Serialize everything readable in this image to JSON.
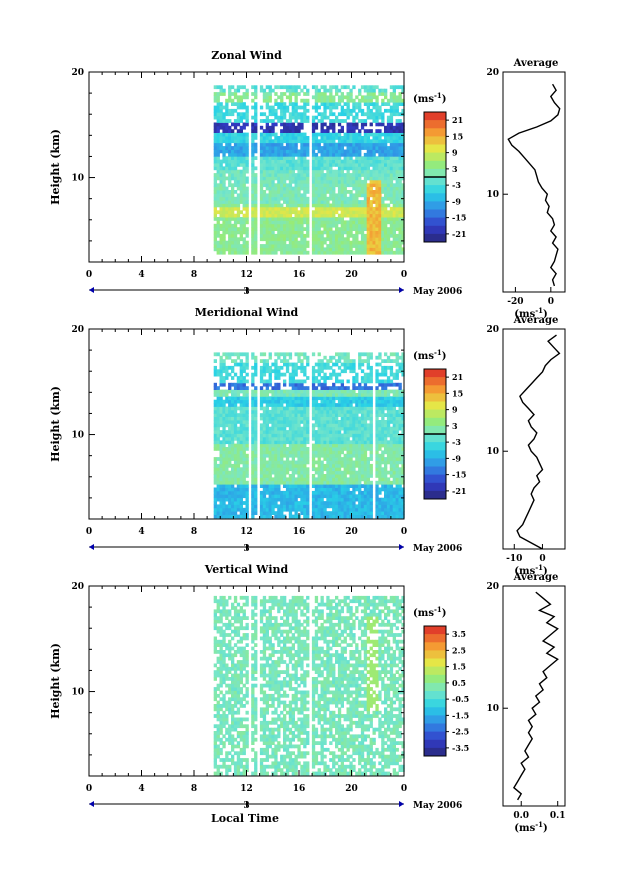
{
  "figure": {
    "xlabel": "Local Time",
    "date_label": "May 2006",
    "time_ticks": [
      "0",
      "4",
      "8",
      "12",
      "16",
      "20",
      "0"
    ],
    "date_tick": "3",
    "height_ticks": [
      "20",
      "10"
    ],
    "ylabel": "Height (km)",
    "unit_label": "(ms",
    "unit_sup": "-1",
    "average_title": "Average"
  },
  "chart_data": [
    {
      "type": "heatmap",
      "title": "Zonal Wind",
      "ylabel": "Height (km)",
      "xlabel": "Local Time",
      "x_range_hours": [
        0,
        24
      ],
      "ylim": [
        2,
        20
      ],
      "data_start_hour": 9.5,
      "colorbar": {
        "unit": "(ms-1)",
        "ticks": [
          "21",
          "15",
          "9",
          "3",
          "-3",
          "-9",
          "-15",
          "-21"
        ],
        "range": [
          -24,
          24
        ],
        "zero_line": true
      },
      "layers": [
        {
          "h": [
            2.5,
            7.5
          ],
          "value": 3
        },
        {
          "h": [
            7.5,
            9.2
          ],
          "value": 1
        },
        {
          "h": [
            9.2,
            10.5
          ],
          "value": 0
        },
        {
          "h": [
            10.5,
            12
          ],
          "value": -2
        },
        {
          "h": [
            12,
            13
          ],
          "value": -10
        },
        {
          "h": [
            13,
            14
          ],
          "value": -5
        },
        {
          "h": [
            14,
            15.2
          ],
          "value": -20
        },
        {
          "h": [
            15.2,
            17
          ],
          "value": -4
        },
        {
          "h": [
            17,
            17.8
          ],
          "value": 3
        },
        {
          "h": [
            17.8,
            18.6
          ],
          "value": -2
        }
      ],
      "jet": {
        "h": [
          6,
          7
        ],
        "value": 9
      },
      "gaps_hours": [
        12.0,
        12.6,
        16.6
      ],
      "average_profile": {
        "xlim": [
          -27,
          8
        ],
        "xticks": [
          "-20",
          "0"
        ],
        "yticks": [
          "20",
          "10"
        ],
        "height": [
          2.5,
          3,
          3.5,
          4,
          4.5,
          5,
          5.5,
          6,
          6.5,
          7,
          7.5,
          8,
          8.5,
          9,
          9.5,
          10,
          10.5,
          11,
          11.5,
          12,
          12.5,
          13,
          13.5,
          14,
          14.5,
          15,
          15.5,
          16,
          16.5,
          17,
          17.5,
          18,
          18.5,
          19
        ],
        "value": [
          2,
          1,
          3,
          0,
          2,
          3,
          4,
          1,
          3,
          0,
          2,
          1,
          -2,
          -1,
          -3,
          -2,
          -5,
          -7,
          -8,
          -9,
          -12,
          -15,
          -18,
          -22,
          -24,
          -18,
          -8,
          0,
          4,
          5,
          2,
          0,
          3,
          1
        ]
      }
    },
    {
      "type": "heatmap",
      "title": "Meridional Wind",
      "ylabel": "Height (km)",
      "xlabel": "Local Time",
      "x_range_hours": [
        0,
        24
      ],
      "ylim": [
        2,
        20
      ],
      "data_start_hour": 9.5,
      "colorbar": {
        "unit": "(ms-1)",
        "ticks": [
          "21",
          "15",
          "9",
          "3",
          "-3",
          "-9",
          "-15",
          "-21"
        ],
        "range": [
          -24,
          24
        ],
        "zero_line": true
      },
      "layers": [
        {
          "h": [
            2.0,
            5.0
          ],
          "value": -8
        },
        {
          "h": [
            5.0,
            9.0
          ],
          "value": 2
        },
        {
          "h": [
            9.0,
            12.5
          ],
          "value": -2
        },
        {
          "h": [
            12.5,
            13.5
          ],
          "value": -6
        },
        {
          "h": [
            13.5,
            14.2
          ],
          "value": 1
        },
        {
          "h": [
            14.2,
            14.8
          ],
          "value": -14
        },
        {
          "h": [
            14.8,
            16.8
          ],
          "value": -4
        },
        {
          "h": [
            16.8,
            17.5
          ],
          "value": 0
        }
      ],
      "gaps_hours": [
        12.0,
        12.6,
        16.6,
        21.4
      ],
      "average_profile": {
        "xlim": [
          -14,
          8
        ],
        "xticks": [
          "-10",
          "0"
        ],
        "yticks": [
          "20",
          "10"
        ],
        "height": [
          2,
          2.5,
          3,
          3.5,
          4,
          4.5,
          5,
          5.5,
          6,
          6.5,
          7,
          7.5,
          8,
          8.5,
          9,
          9.5,
          10,
          10.5,
          11,
          11.5,
          12,
          12.5,
          13,
          13.5,
          14,
          14.5,
          15,
          15.5,
          16,
          16.5,
          17,
          17.5,
          18,
          18.5,
          19,
          19.5
        ],
        "value": [
          0,
          -4,
          -8,
          -9,
          -7,
          -6,
          -5,
          -4,
          -3,
          -4,
          -3,
          -1,
          -2,
          0,
          -1,
          -2,
          -4,
          -5,
          -3,
          -2,
          -4,
          -5,
          -3,
          -5,
          -7,
          -8,
          -6,
          -4,
          -2,
          0,
          1,
          3,
          6,
          4,
          2,
          5
        ]
      }
    },
    {
      "type": "heatmap",
      "title": "Vertical Wind",
      "ylabel": "Height (km)",
      "xlabel": "Local Time",
      "x_range_hours": [
        0,
        24
      ],
      "ylim": [
        2,
        20
      ],
      "data_start_hour": 9.5,
      "colorbar": {
        "unit": "(ms-1)",
        "ticks": [
          "3.5",
          "2.5",
          "1.5",
          "0.5",
          "-0.5",
          "-1.5",
          "-2.5",
          "-3.5"
        ],
        "range": [
          -4,
          4
        ],
        "zero_line": false
      },
      "layers": [
        {
          "h": [
            2.0,
            20.0
          ],
          "value": 0.1
        }
      ],
      "gaps_hours": [
        12.0,
        12.6,
        16.6
      ],
      "average_profile": {
        "xlim": [
          -0.05,
          0.12
        ],
        "xticks": [
          "0.0",
          "0.1"
        ],
        "yticks": [
          "20",
          "10"
        ],
        "height": [
          2.5,
          3,
          3.5,
          4,
          4.5,
          5,
          5.5,
          6,
          6.5,
          7,
          7.5,
          8,
          8.5,
          9,
          9.5,
          10,
          10.5,
          11,
          11.5,
          12,
          12.5,
          13,
          13.5,
          14,
          14.5,
          15,
          15.5,
          16,
          16.5,
          17,
          17.5,
          18,
          18.5,
          19,
          19.5
        ],
        "value": [
          -0.01,
          0.0,
          -0.02,
          -0.01,
          0.0,
          0.01,
          0.0,
          0.02,
          0.01,
          0.02,
          0.03,
          0.02,
          0.03,
          0.02,
          0.04,
          0.03,
          0.05,
          0.04,
          0.06,
          0.05,
          0.07,
          0.06,
          0.08,
          0.1,
          0.07,
          0.09,
          0.06,
          0.08,
          0.1,
          0.07,
          0.09,
          0.05,
          0.08,
          0.06,
          0.04
        ]
      }
    }
  ]
}
